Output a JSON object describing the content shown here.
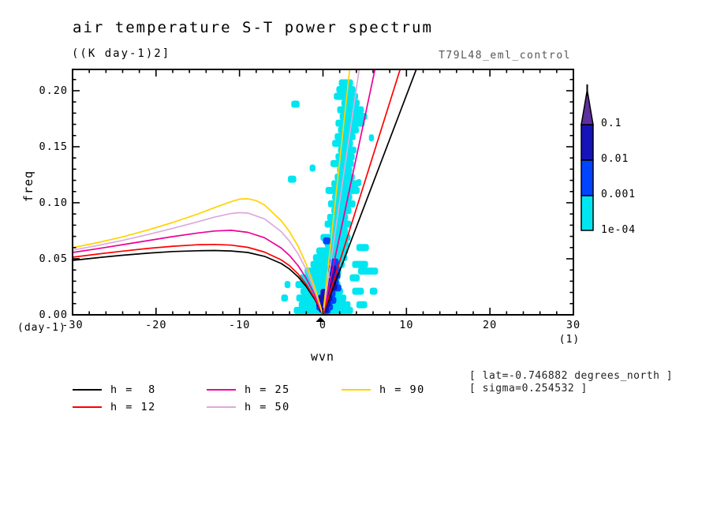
{
  "figure": {
    "title": "air temperature S-T power spectrum",
    "subtitle": "((K day-1)2]",
    "run_label": "T79L48_eml_control"
  },
  "axes": {
    "x": {
      "label": "wvn",
      "unit_left": "(day-1)",
      "unit_right": "(1)",
      "min": -30,
      "max": 30,
      "major_ticks": [
        -30,
        -20,
        -10,
        0,
        10,
        20,
        30
      ],
      "tick_labels": [
        "-30",
        "-20",
        "-10",
        "0",
        "10",
        "20",
        "30"
      ],
      "minor_step": 2
    },
    "y": {
      "label": "freq",
      "min": 0,
      "max": 0.219,
      "major_ticks": [
        0.0,
        0.05,
        0.1,
        0.15,
        0.2
      ],
      "tick_labels": [
        "0.00",
        "0.05",
        "0.10",
        "0.15",
        "0.20"
      ],
      "minor_step": 0.01
    }
  },
  "legend": {
    "items": [
      {
        "label": "h =  8",
        "color": "#000000"
      },
      {
        "label": "h = 12",
        "color": "#ff0000"
      },
      {
        "label": "h = 25",
        "color": "#ee0099"
      },
      {
        "label": "h = 50",
        "color": "#dda9dd"
      },
      {
        "label": "h = 90",
        "color": "#ffd300"
      }
    ]
  },
  "annotations": {
    "line1": "[ lat=-0.746882 degrees_north ]",
    "line2": "[ sigma=0.254532 ]"
  },
  "colorbar": {
    "labels": [
      "0.1",
      "0.01",
      "0.001",
      "1e-04"
    ],
    "segment_colors": [
      "#5e2f9e",
      "#1414b8",
      "#0044ff",
      "#00e6f0"
    ]
  },
  "chart_data": {
    "type": "heatmap",
    "note": "space-time power spectrum (filled contours) with equatorial wave dispersion curves",
    "title": "air temperature S-T power spectrum",
    "xlabel": "wvn",
    "ylabel": "freq",
    "xlim": [
      -30,
      30
    ],
    "ylim": [
      0,
      0.219
    ],
    "contour_levels": [
      0.0001,
      0.001,
      0.01,
      0.1
    ],
    "colors": {
      "cyan": "#00e6f0",
      "blue": "#0044ff",
      "navy": "#1414b8",
      "purple": "#5e2f9e"
    },
    "curves": [
      {
        "name": "h =  8",
        "color": "#000000",
        "east_slope": 0.0196,
        "west": [
          [
            -30,
            0.0486
          ],
          [
            -27,
            0.051
          ],
          [
            -24,
            0.0532
          ],
          [
            -21,
            0.055
          ],
          [
            -18,
            0.0565
          ],
          [
            -15,
            0.0572
          ],
          [
            -13,
            0.0574
          ],
          [
            -11,
            0.057
          ],
          [
            -9,
            0.0556
          ],
          [
            -7,
            0.0522
          ],
          [
            -5,
            0.0458
          ],
          [
            -4,
            0.0408
          ],
          [
            -3,
            0.034
          ],
          [
            -2,
            0.0252
          ],
          [
            -1,
            0.014
          ],
          [
            0,
            0
          ]
        ]
      },
      {
        "name": "h = 12",
        "color": "#ff0000",
        "east_slope": 0.0237,
        "west": [
          [
            -30,
            0.0514
          ],
          [
            -27,
            0.0542
          ],
          [
            -24,
            0.0568
          ],
          [
            -21,
            0.0592
          ],
          [
            -18,
            0.0612
          ],
          [
            -15,
            0.0625
          ],
          [
            -13,
            0.0628
          ],
          [
            -11,
            0.0622
          ],
          [
            -9,
            0.0602
          ],
          [
            -7,
            0.056
          ],
          [
            -5,
            0.049
          ],
          [
            -4,
            0.0438
          ],
          [
            -3,
            0.0366
          ],
          [
            -2,
            0.0272
          ],
          [
            -1,
            0.015
          ],
          [
            0,
            0
          ]
        ]
      },
      {
        "name": "h = 25",
        "color": "#ee0099",
        "east_slope": 0.0352,
        "west": [
          [
            -30,
            0.0556
          ],
          [
            -27,
            0.059
          ],
          [
            -24,
            0.0626
          ],
          [
            -21,
            0.0662
          ],
          [
            -18,
            0.0698
          ],
          [
            -15,
            0.073
          ],
          [
            -13,
            0.0748
          ],
          [
            -11,
            0.0754
          ],
          [
            -9,
            0.0736
          ],
          [
            -7,
            0.0688
          ],
          [
            -5,
            0.0596
          ],
          [
            -4,
            0.0528
          ],
          [
            -3,
            0.044
          ],
          [
            -2,
            0.0326
          ],
          [
            -1,
            0.018
          ],
          [
            0,
            0
          ]
        ]
      },
      {
        "name": "h = 50",
        "color": "#dda9dd",
        "east_slope": 0.0505,
        "west": [
          [
            -30,
            0.0577
          ],
          [
            -27,
            0.0618
          ],
          [
            -24,
            0.0664
          ],
          [
            -21,
            0.0716
          ],
          [
            -18,
            0.0772
          ],
          [
            -15,
            0.083
          ],
          [
            -13,
            0.0872
          ],
          [
            -11,
            0.0904
          ],
          [
            -10,
            0.0912
          ],
          [
            -9,
            0.0908
          ],
          [
            -7,
            0.0856
          ],
          [
            -5,
            0.0742
          ],
          [
            -4,
            0.0656
          ],
          [
            -3,
            0.0546
          ],
          [
            -2,
            0.0404
          ],
          [
            -1,
            0.022
          ],
          [
            0,
            0
          ]
        ]
      },
      {
        "name": "h = 90",
        "color": "#ffd300",
        "east_slope": 0.0685,
        "west": [
          [
            -30,
            0.0599
          ],
          [
            -27,
            0.0644
          ],
          [
            -24,
            0.0696
          ],
          [
            -21,
            0.0756
          ],
          [
            -18,
            0.0824
          ],
          [
            -15,
            0.09
          ],
          [
            -13,
            0.0956
          ],
          [
            -11,
            0.101
          ],
          [
            -10,
            0.1032
          ],
          [
            -9,
            0.1036
          ],
          [
            -8,
            0.102
          ],
          [
            -7,
            0.098
          ],
          [
            -5,
            0.084
          ],
          [
            -4,
            0.074
          ],
          [
            -3,
            0.0614
          ],
          [
            -2,
            0.0452
          ],
          [
            -1,
            0.0248
          ],
          [
            0,
            0
          ]
        ]
      }
    ],
    "cyan_bands": [
      [
        0.207,
        1.9,
        3.6
      ],
      [
        0.201,
        1.6,
        3.9
      ],
      [
        0.195,
        1.3,
        4.2
      ],
      [
        0.189,
        2.2,
        4.4
      ],
      [
        0.188,
        -3.8,
        -2.8
      ],
      [
        0.183,
        1.7,
        4.9
      ],
      [
        0.177,
        2.0,
        5.3
      ],
      [
        0.171,
        1.5,
        5.0
      ],
      [
        0.165,
        1.8,
        4.3
      ],
      [
        0.159,
        1.4,
        3.9
      ],
      [
        0.158,
        5.5,
        6.1
      ],
      [
        0.153,
        1.1,
        3.6
      ],
      [
        0.147,
        1.8,
        4.0
      ],
      [
        0.141,
        1.5,
        3.8
      ],
      [
        0.135,
        0.9,
        3.7
      ],
      [
        0.131,
        -1.6,
        -0.9
      ],
      [
        0.129,
        1.7,
        3.5
      ],
      [
        0.123,
        1.4,
        3.8
      ],
      [
        0.121,
        -4.2,
        -3.2
      ],
      [
        0.118,
        4.0,
        4.6
      ],
      [
        0.117,
        1.0,
        4.3
      ],
      [
        0.111,
        0.3,
        4.4
      ],
      [
        0.105,
        1.1,
        3.5
      ],
      [
        0.099,
        0.6,
        3.9
      ],
      [
        0.093,
        1.0,
        3.4
      ],
      [
        0.087,
        0.5,
        3.0
      ],
      [
        0.081,
        0.2,
        3.4
      ],
      [
        0.075,
        0.8,
        3.0
      ],
      [
        0.069,
        -0.3,
        3.3
      ],
      [
        0.063,
        0.2,
        3.1
      ],
      [
        0.06,
        4.0,
        5.5
      ],
      [
        0.057,
        -0.8,
        3.0
      ],
      [
        0.051,
        -1.2,
        2.9
      ],
      [
        0.045,
        -1.5,
        2.6
      ],
      [
        0.045,
        3.5,
        5.4
      ],
      [
        0.039,
        -2.2,
        2.2
      ],
      [
        0.039,
        4.2,
        6.6
      ],
      [
        0.033,
        -2.8,
        2.0
      ],
      [
        0.033,
        3.2,
        4.4
      ],
      [
        0.027,
        -3.3,
        2.1
      ],
      [
        0.027,
        -4.6,
        -3.9
      ],
      [
        0.021,
        -2.7,
        2.4
      ],
      [
        0.021,
        3.5,
        4.9
      ],
      [
        0.021,
        5.6,
        6.5
      ],
      [
        0.015,
        -3.2,
        2.8
      ],
      [
        0.015,
        -5.0,
        -4.2
      ],
      [
        0.009,
        -2.9,
        3.3
      ],
      [
        0.009,
        4.0,
        5.3
      ],
      [
        0.004,
        -3.5,
        3.6
      ]
    ],
    "blue_bands": [
      [
        0.066,
        0.0,
        0.9
      ],
      [
        0.047,
        0.8,
        1.9
      ],
      [
        0.041,
        0.5,
        2.0
      ],
      [
        0.035,
        0.9,
        2.1
      ],
      [
        0.029,
        0.4,
        1.9
      ],
      [
        0.024,
        0.6,
        2.2
      ],
      [
        0.019,
        -0.2,
        1.5
      ],
      [
        0.013,
        -0.5,
        1.6
      ],
      [
        0.007,
        -0.8,
        1.2
      ],
      [
        0.004,
        -0.3,
        0.9
      ]
    ],
    "navy_bands": [
      [
        0.041,
        1.0,
        1.6
      ],
      [
        0.036,
        0.8,
        1.7
      ],
      [
        0.03,
        0.6,
        1.6
      ],
      [
        0.025,
        0.5,
        1.7
      ],
      [
        0.02,
        -0.3,
        1.0
      ],
      [
        0.015,
        -0.6,
        1.1
      ],
      [
        0.01,
        -0.8,
        0.9
      ],
      [
        0.005,
        -0.5,
        0.7
      ]
    ],
    "origin_marker_wvn": -0.3
  }
}
